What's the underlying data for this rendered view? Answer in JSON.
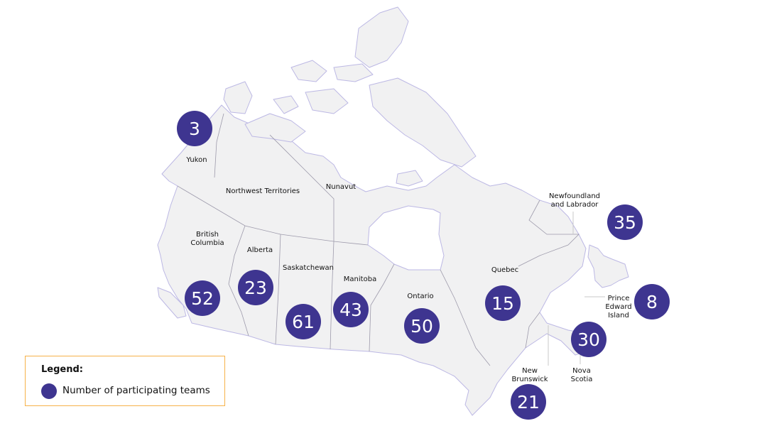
{
  "colors": {
    "bubble": "#3e3590",
    "land": "#f1f1f2",
    "coast": "#bcb8e4",
    "legend_border": "#f6b24a"
  },
  "legend": {
    "title": "Legend:",
    "item": "Number of participating teams"
  },
  "provinces": [
    {
      "id": "yukon",
      "name": "Yukon",
      "teams": "3"
    },
    {
      "id": "nwt",
      "name": "Northwest Territories",
      "teams": null
    },
    {
      "id": "nunavut",
      "name": "Nunavut",
      "teams": null
    },
    {
      "id": "bc",
      "name": "British Columbia",
      "teams": "52"
    },
    {
      "id": "alberta",
      "name": "Alberta",
      "teams": "23"
    },
    {
      "id": "sask",
      "name": "Saskatchewan",
      "teams": "61"
    },
    {
      "id": "manitoba",
      "name": "Manitoba",
      "teams": "43"
    },
    {
      "id": "ontario",
      "name": "Ontario",
      "teams": "50"
    },
    {
      "id": "quebec",
      "name": "Quebec",
      "teams": "15"
    },
    {
      "id": "nl",
      "name": "Newfoundland and Labrador",
      "teams": "35"
    },
    {
      "id": "pei",
      "name": "Prince Edward Island",
      "teams": "8"
    },
    {
      "id": "ns",
      "name": "Nova Scotia",
      "teams": "30"
    },
    {
      "id": "nb",
      "name": "New Brunswick",
      "teams": "21"
    }
  ]
}
